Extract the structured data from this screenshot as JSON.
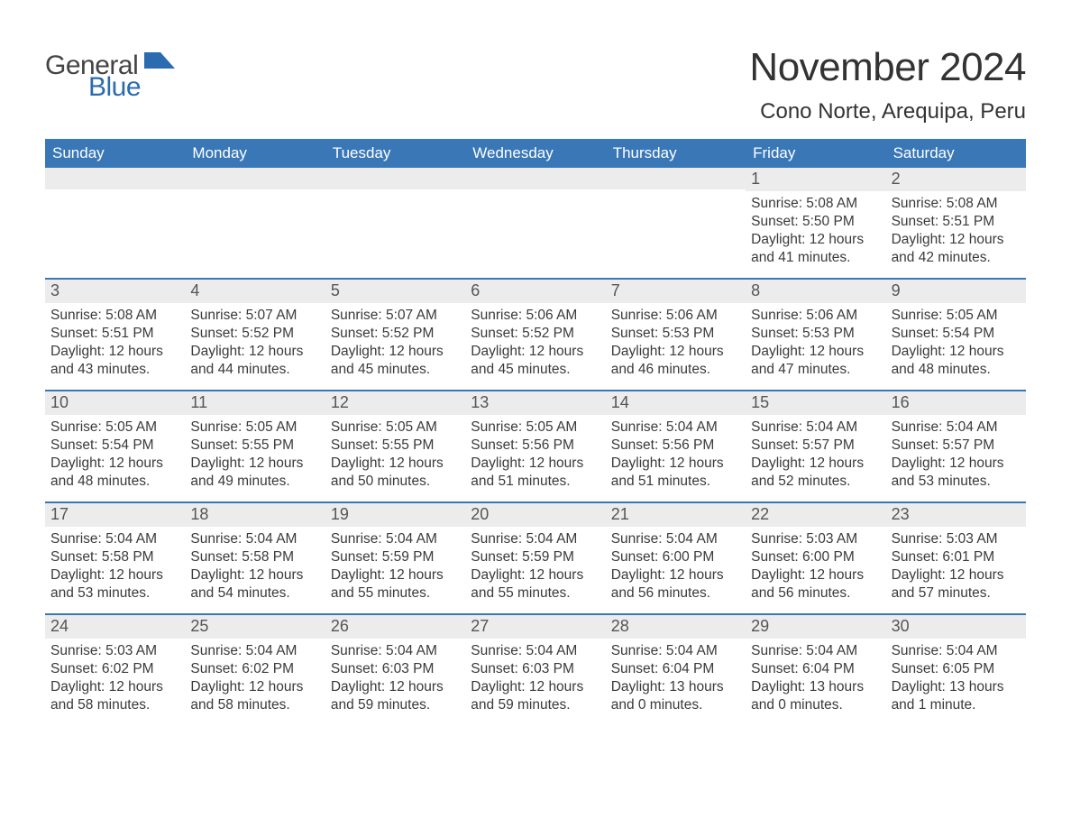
{
  "logo": {
    "text1": "General",
    "text2": "Blue",
    "mark_color": "#2b6bb0"
  },
  "title": "November 2024",
  "location": "Cono Norte, Arequipa, Peru",
  "colors": {
    "header_bg": "#3a77b7",
    "header_fg": "#ffffff",
    "daynum_bg": "#ececec",
    "rule": "#3a77b7",
    "text": "#3a3a3a"
  },
  "dow": [
    "Sunday",
    "Monday",
    "Tuesday",
    "Wednesday",
    "Thursday",
    "Friday",
    "Saturday"
  ],
  "weeks": [
    [
      null,
      null,
      null,
      null,
      null,
      {
        "n": "1",
        "sunrise": "5:08 AM",
        "sunset": "5:50 PM",
        "daylight": "12 hours and 41 minutes."
      },
      {
        "n": "2",
        "sunrise": "5:08 AM",
        "sunset": "5:51 PM",
        "daylight": "12 hours and 42 minutes."
      }
    ],
    [
      {
        "n": "3",
        "sunrise": "5:08 AM",
        "sunset": "5:51 PM",
        "daylight": "12 hours and 43 minutes."
      },
      {
        "n": "4",
        "sunrise": "5:07 AM",
        "sunset": "5:52 PM",
        "daylight": "12 hours and 44 minutes."
      },
      {
        "n": "5",
        "sunrise": "5:07 AM",
        "sunset": "5:52 PM",
        "daylight": "12 hours and 45 minutes."
      },
      {
        "n": "6",
        "sunrise": "5:06 AM",
        "sunset": "5:52 PM",
        "daylight": "12 hours and 45 minutes."
      },
      {
        "n": "7",
        "sunrise": "5:06 AM",
        "sunset": "5:53 PM",
        "daylight": "12 hours and 46 minutes."
      },
      {
        "n": "8",
        "sunrise": "5:06 AM",
        "sunset": "5:53 PM",
        "daylight": "12 hours and 47 minutes."
      },
      {
        "n": "9",
        "sunrise": "5:05 AM",
        "sunset": "5:54 PM",
        "daylight": "12 hours and 48 minutes."
      }
    ],
    [
      {
        "n": "10",
        "sunrise": "5:05 AM",
        "sunset": "5:54 PM",
        "daylight": "12 hours and 48 minutes."
      },
      {
        "n": "11",
        "sunrise": "5:05 AM",
        "sunset": "5:55 PM",
        "daylight": "12 hours and 49 minutes."
      },
      {
        "n": "12",
        "sunrise": "5:05 AM",
        "sunset": "5:55 PM",
        "daylight": "12 hours and 50 minutes."
      },
      {
        "n": "13",
        "sunrise": "5:05 AM",
        "sunset": "5:56 PM",
        "daylight": "12 hours and 51 minutes."
      },
      {
        "n": "14",
        "sunrise": "5:04 AM",
        "sunset": "5:56 PM",
        "daylight": "12 hours and 51 minutes."
      },
      {
        "n": "15",
        "sunrise": "5:04 AM",
        "sunset": "5:57 PM",
        "daylight": "12 hours and 52 minutes."
      },
      {
        "n": "16",
        "sunrise": "5:04 AM",
        "sunset": "5:57 PM",
        "daylight": "12 hours and 53 minutes."
      }
    ],
    [
      {
        "n": "17",
        "sunrise": "5:04 AM",
        "sunset": "5:58 PM",
        "daylight": "12 hours and 53 minutes."
      },
      {
        "n": "18",
        "sunrise": "5:04 AM",
        "sunset": "5:58 PM",
        "daylight": "12 hours and 54 minutes."
      },
      {
        "n": "19",
        "sunrise": "5:04 AM",
        "sunset": "5:59 PM",
        "daylight": "12 hours and 55 minutes."
      },
      {
        "n": "20",
        "sunrise": "5:04 AM",
        "sunset": "5:59 PM",
        "daylight": "12 hours and 55 minutes."
      },
      {
        "n": "21",
        "sunrise": "5:04 AM",
        "sunset": "6:00 PM",
        "daylight": "12 hours and 56 minutes."
      },
      {
        "n": "22",
        "sunrise": "5:03 AM",
        "sunset": "6:00 PM",
        "daylight": "12 hours and 56 minutes."
      },
      {
        "n": "23",
        "sunrise": "5:03 AM",
        "sunset": "6:01 PM",
        "daylight": "12 hours and 57 minutes."
      }
    ],
    [
      {
        "n": "24",
        "sunrise": "5:03 AM",
        "sunset": "6:02 PM",
        "daylight": "12 hours and 58 minutes."
      },
      {
        "n": "25",
        "sunrise": "5:04 AM",
        "sunset": "6:02 PM",
        "daylight": "12 hours and 58 minutes."
      },
      {
        "n": "26",
        "sunrise": "5:04 AM",
        "sunset": "6:03 PM",
        "daylight": "12 hours and 59 minutes."
      },
      {
        "n": "27",
        "sunrise": "5:04 AM",
        "sunset": "6:03 PM",
        "daylight": "12 hours and 59 minutes."
      },
      {
        "n": "28",
        "sunrise": "5:04 AM",
        "sunset": "6:04 PM",
        "daylight": "13 hours and 0 minutes."
      },
      {
        "n": "29",
        "sunrise": "5:04 AM",
        "sunset": "6:04 PM",
        "daylight": "13 hours and 0 minutes."
      },
      {
        "n": "30",
        "sunrise": "5:04 AM",
        "sunset": "6:05 PM",
        "daylight": "13 hours and 1 minute."
      }
    ]
  ],
  "labels": {
    "sunrise": "Sunrise: ",
    "sunset": "Sunset: ",
    "daylight": "Daylight: "
  }
}
